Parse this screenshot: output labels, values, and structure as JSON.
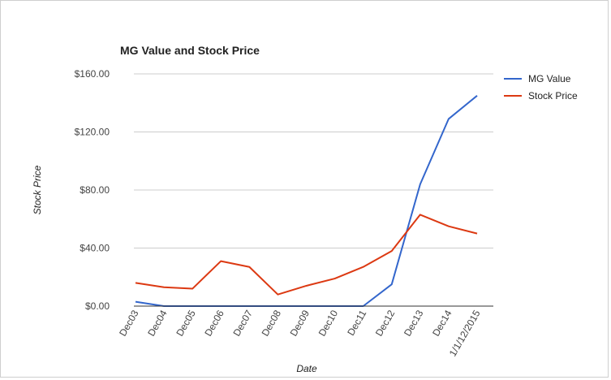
{
  "chart_data": {
    "type": "line",
    "title": "MG Value and Stock Price",
    "xlabel": "Date",
    "ylabel": "Stock Price",
    "categories": [
      "Dec03",
      "Dec04",
      "Dec05",
      "Dec06",
      "Dec07",
      "Dec08",
      "Dec09",
      "Dec10",
      "Dec11",
      "Dec12",
      "Dec13",
      "Dec14",
      "1/1/12/2015"
    ],
    "ylim": [
      0,
      160
    ],
    "yticks": [
      0,
      40,
      80,
      120,
      160
    ],
    "ytick_labels": [
      "$0.00",
      "$40.00",
      "$80.00",
      "$120.00",
      "$160.00"
    ],
    "grid": true,
    "legend_position": "right",
    "series": [
      {
        "name": "MG Value",
        "color": "#3366cc",
        "values": [
          3,
          0,
          0,
          0,
          0,
          0,
          0,
          0,
          0,
          15,
          84,
          129,
          145
        ]
      },
      {
        "name": "Stock Price",
        "color": "#dc3912",
        "values": [
          16,
          13,
          12,
          31,
          27,
          8,
          14,
          19,
          27,
          38,
          63,
          55,
          50
        ]
      }
    ]
  }
}
